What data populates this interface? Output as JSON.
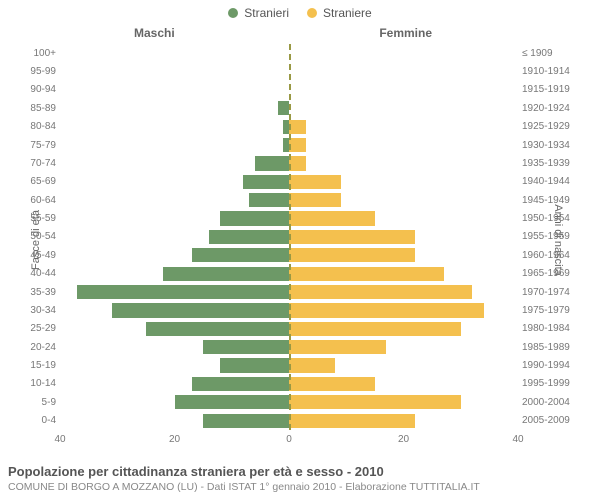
{
  "chart": {
    "type": "population-pyramid",
    "legend": {
      "male": {
        "label": "Stranieri",
        "color": "#6d9967"
      },
      "female": {
        "label": "Straniere",
        "color": "#f4c04e"
      }
    },
    "titles": {
      "left": "Maschi",
      "right": "Femmine",
      "y_left": "Fasce di età",
      "y_right": "Anni di nascita"
    },
    "x_axis": {
      "max": 40,
      "ticks": [
        40,
        20,
        0,
        20,
        40
      ]
    },
    "age_groups": [
      {
        "age": "100+",
        "birth": "≤ 1909",
        "m": 0,
        "f": 0
      },
      {
        "age": "95-99",
        "birth": "1910-1914",
        "m": 0,
        "f": 0
      },
      {
        "age": "90-94",
        "birth": "1915-1919",
        "m": 0,
        "f": 0
      },
      {
        "age": "85-89",
        "birth": "1920-1924",
        "m": 2,
        "f": 0
      },
      {
        "age": "80-84",
        "birth": "1925-1929",
        "m": 1,
        "f": 3
      },
      {
        "age": "75-79",
        "birth": "1930-1934",
        "m": 1,
        "f": 3
      },
      {
        "age": "70-74",
        "birth": "1935-1939",
        "m": 6,
        "f": 3
      },
      {
        "age": "65-69",
        "birth": "1940-1944",
        "m": 8,
        "f": 9
      },
      {
        "age": "60-64",
        "birth": "1945-1949",
        "m": 7,
        "f": 9
      },
      {
        "age": "55-59",
        "birth": "1950-1954",
        "m": 12,
        "f": 15
      },
      {
        "age": "50-54",
        "birth": "1955-1959",
        "m": 14,
        "f": 22
      },
      {
        "age": "45-49",
        "birth": "1960-1964",
        "m": 17,
        "f": 22
      },
      {
        "age": "40-44",
        "birth": "1965-1969",
        "m": 22,
        "f": 27
      },
      {
        "age": "35-39",
        "birth": "1970-1974",
        "m": 37,
        "f": 32
      },
      {
        "age": "30-34",
        "birth": "1975-1979",
        "m": 31,
        "f": 34
      },
      {
        "age": "25-29",
        "birth": "1980-1984",
        "m": 25,
        "f": 30
      },
      {
        "age": "20-24",
        "birth": "1985-1989",
        "m": 15,
        "f": 17
      },
      {
        "age": "15-19",
        "birth": "1990-1994",
        "m": 12,
        "f": 8
      },
      {
        "age": "10-14",
        "birth": "1995-1999",
        "m": 17,
        "f": 15
      },
      {
        "age": "5-9",
        "birth": "2000-2004",
        "m": 20,
        "f": 30
      },
      {
        "age": "0-4",
        "birth": "2005-2009",
        "m": 15,
        "f": 22
      }
    ],
    "background_color": "#ffffff",
    "centerline_color": "#aaaa55",
    "label_fontsize": 10
  },
  "footer": {
    "title": "Popolazione per cittadinanza straniera per età e sesso - 2010",
    "subtitle": "COMUNE DI BORGO A MOZZANO (LU) - Dati ISTAT 1° gennaio 2010 - Elaborazione TUTTITALIA.IT"
  }
}
